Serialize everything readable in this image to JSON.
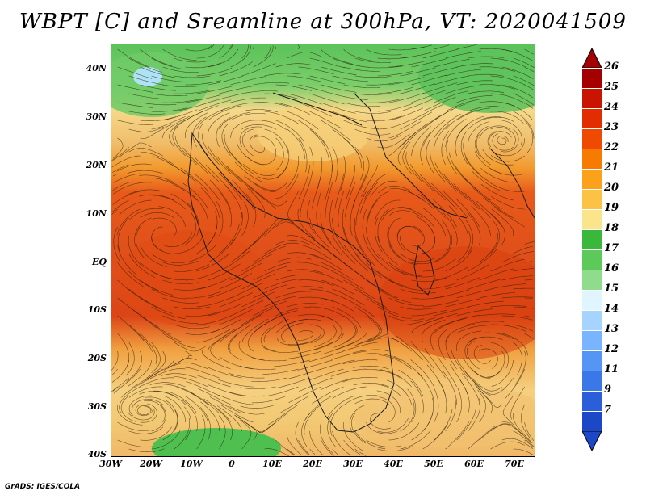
{
  "title": "WBPT [C] and Sreamline at 300hPa, VT: 2020041509",
  "credit": "GrADS: IGES/COLA",
  "map": {
    "lat_labels": [
      "40N",
      "30N",
      "20N",
      "10N",
      "EQ",
      "10S",
      "20S",
      "30S",
      "40S"
    ],
    "lon_labels": [
      "30W",
      "20W",
      "10W",
      "0",
      "10E",
      "20E",
      "30E",
      "40E",
      "50E",
      "60E",
      "70E"
    ],
    "lat_range": [
      -40,
      45
    ],
    "lon_range": [
      -30,
      75
    ]
  },
  "legend": {
    "levels": [
      "26",
      "25",
      "24",
      "23",
      "22",
      "21",
      "20",
      "19",
      "18",
      "17",
      "16",
      "15",
      "14",
      "13",
      "12",
      "11",
      "9",
      "7"
    ],
    "colors": [
      "#a50000",
      "#c81400",
      "#e12d00",
      "#f04a00",
      "#f77b00",
      "#fba21a",
      "#fcc246",
      "#fbe58c",
      "#39b83b",
      "#5dc95b",
      "#8fdc8c",
      "#dff5ff",
      "#a6d4ff",
      "#79b5ff",
      "#5596f5",
      "#3a78e8",
      "#2a5fd9",
      "#1c48c8"
    ]
  },
  "field": {
    "bands": [
      {
        "name": "north-green",
        "color": "#5cc25a"
      },
      {
        "name": "north-pale",
        "color": "#f5d98a"
      },
      {
        "name": "tan",
        "color": "#f0bd6a"
      },
      {
        "name": "orange",
        "color": "#f29a2e"
      },
      {
        "name": "red-orange",
        "color": "#e85a1a"
      },
      {
        "name": "deep-red",
        "color": "#dc4516"
      },
      {
        "name": "south-orange",
        "color": "#f0a040"
      },
      {
        "name": "south-pale",
        "color": "#f5d080"
      },
      {
        "name": "south-green",
        "color": "#5ac050"
      }
    ],
    "lake_color": "#aee3f5"
  }
}
